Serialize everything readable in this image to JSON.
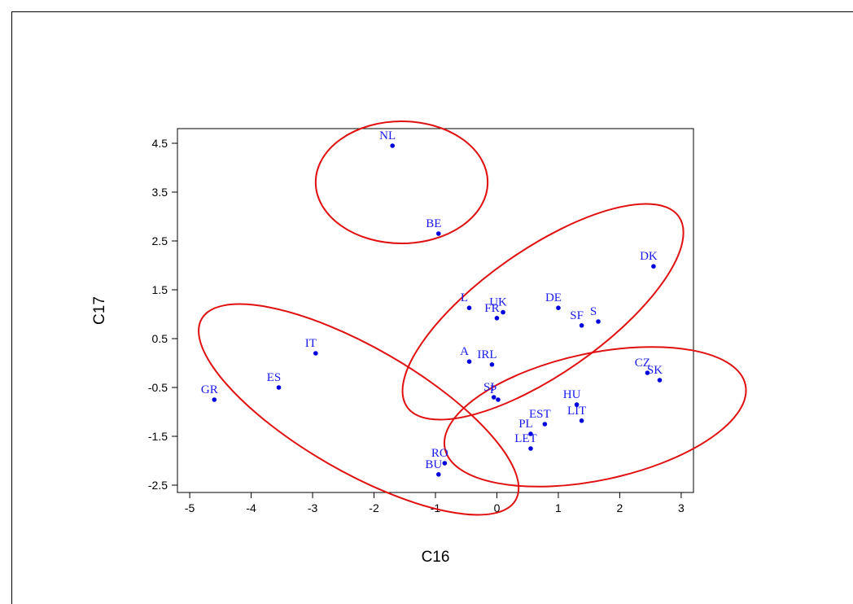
{
  "chart_data": {
    "type": "scatter",
    "xlabel": "C16",
    "ylabel": "C17",
    "xlim": [
      -5.2,
      3.2
    ],
    "ylim": [
      -2.65,
      4.8
    ],
    "xticks": [
      -5,
      -4,
      -3,
      -2,
      -1,
      0,
      1,
      2,
      3
    ],
    "yticks": [
      -2.5,
      -1.5,
      -0.5,
      0.5,
      1.5,
      2.5,
      3.5,
      4.5
    ],
    "grid": false,
    "point_color": "#0000dd",
    "ellipse_color": "#e01010",
    "points": [
      {
        "label": "NL",
        "x": -1.7,
        "y": 4.45
      },
      {
        "label": "BE",
        "x": -0.95,
        "y": 2.65
      },
      {
        "label": "DK",
        "x": 2.55,
        "y": 1.98
      },
      {
        "label": "L",
        "x": -0.45,
        "y": 1.13
      },
      {
        "label": "UK",
        "x": 0.1,
        "y": 1.04
      },
      {
        "label": "FR",
        "x": 0.0,
        "y": 0.92
      },
      {
        "label": "DE",
        "x": 1.0,
        "y": 1.13
      },
      {
        "label": "SF",
        "x": 1.38,
        "y": 0.77
      },
      {
        "label": "S",
        "x": 1.65,
        "y": 0.85
      },
      {
        "label": "A",
        "x": -0.45,
        "y": 0.03
      },
      {
        "label": "IRL",
        "x": -0.08,
        "y": -0.03
      },
      {
        "label": "IT",
        "x": -2.95,
        "y": 0.2
      },
      {
        "label": "GR",
        "x": -4.6,
        "y": -0.75
      },
      {
        "label": "ES",
        "x": -3.55,
        "y": -0.5
      },
      {
        "label": "CZ",
        "x": 2.45,
        "y": -0.2
      },
      {
        "label": "SK",
        "x": 2.65,
        "y": -0.35
      },
      {
        "label": "SI",
        "x": -0.05,
        "y": -0.7
      },
      {
        "label": "P",
        "x": 0.02,
        "y": -0.75
      },
      {
        "label": "HU",
        "x": 1.3,
        "y": -0.85
      },
      {
        "label": "LIT",
        "x": 1.38,
        "y": -1.18
      },
      {
        "label": "EST",
        "x": 0.78,
        "y": -1.25
      },
      {
        "label": "PL",
        "x": 0.55,
        "y": -1.45
      },
      {
        "label": "LET",
        "x": 0.55,
        "y": -1.75
      },
      {
        "label": "RO",
        "x": -0.85,
        "y": -2.05
      },
      {
        "label": "BU",
        "x": -0.95,
        "y": -2.28
      }
    ],
    "ellipses": [
      {
        "cx": -1.55,
        "cy": 3.7,
        "rx": 1.4,
        "ry": 1.25,
        "angle": 0
      },
      {
        "cx": 0.75,
        "cy": 1.05,
        "rx": 2.7,
        "ry": 1.27,
        "angle": -35
      },
      {
        "cx": -2.25,
        "cy": -0.95,
        "rx": 2.95,
        "ry": 1.27,
        "angle": 30
      },
      {
        "cx": 1.6,
        "cy": -1.1,
        "rx": 2.5,
        "ry": 1.3,
        "angle": -12
      }
    ]
  }
}
